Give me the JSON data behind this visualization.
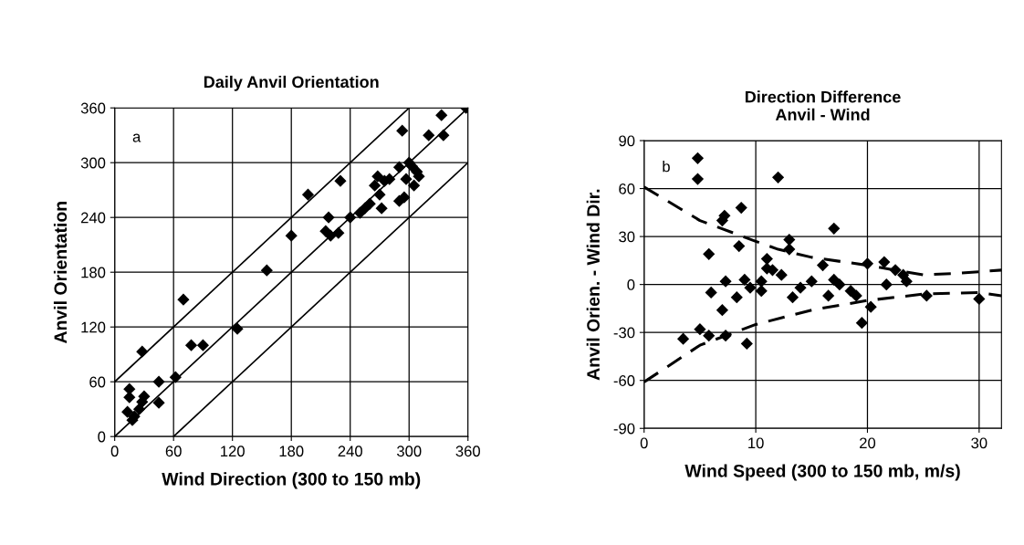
{
  "chart_data": [
    {
      "type": "scatter",
      "title": "Daily Anvil Orientation",
      "xlabel": "Wind Direction (300 to 150 mb)",
      "ylabel": "Anvil Orientation",
      "annotations": [
        "a"
      ],
      "xlim": [
        0,
        360
      ],
      "ylim": [
        0,
        360
      ],
      "xticks": [
        0,
        60,
        120,
        180,
        240,
        300,
        360
      ],
      "yticks": [
        0,
        60,
        120,
        180,
        240,
        300,
        360
      ],
      "grid": true,
      "marker": "diamond",
      "series": [
        {
          "color": "#000000",
          "x": [
            15,
            15,
            13,
            18,
            20,
            25,
            28,
            30,
            28,
            45,
            45,
            62,
            70,
            78,
            90,
            125,
            155,
            180,
            197,
            215,
            218,
            220,
            228,
            230,
            240,
            250,
            255,
            260,
            265,
            268,
            270,
            272,
            275,
            280,
            290,
            290,
            293,
            295,
            297,
            300,
            303,
            305,
            308,
            310,
            320,
            333,
            335,
            358
          ],
          "values": [
            52,
            43,
            27,
            18,
            22,
            30,
            93,
            44,
            38,
            37,
            60,
            65,
            150,
            100,
            100,
            118,
            182,
            220,
            265,
            225,
            240,
            220,
            223,
            280,
            240,
            245,
            250,
            255,
            275,
            285,
            265,
            250,
            280,
            282,
            295,
            258,
            335,
            262,
            282,
            300,
            296,
            275,
            290,
            285,
            330,
            352,
            330,
            360
          ]
        },
        {
          "type": "line",
          "color": "#000000",
          "marker": "none",
          "line_style": "solid",
          "x": [
            0,
            300
          ],
          "values": [
            60,
            360
          ]
        },
        {
          "type": "line",
          "color": "#000000",
          "marker": "none",
          "line_style": "solid",
          "x": [
            0,
            360
          ],
          "values": [
            0,
            360
          ]
        },
        {
          "type": "line",
          "color": "#000000",
          "marker": "none",
          "line_style": "solid",
          "x": [
            60,
            360
          ],
          "values": [
            0,
            300
          ]
        }
      ]
    },
    {
      "type": "scatter",
      "title": "Direction Difference\nAnvil - Wind",
      "xlabel": "Wind Speed (300 to 150 mb, m/s)",
      "ylabel": "Anvil Orien. - Wind Dir.",
      "annotations": [
        "b"
      ],
      "xlim": [
        0,
        32
      ],
      "ylim": [
        -90,
        90
      ],
      "xticks": [
        0,
        10,
        20,
        30
      ],
      "yticks": [
        -90,
        -60,
        -30,
        0,
        30,
        60,
        90
      ],
      "grid": true,
      "marker": "diamond",
      "series": [
        {
          "color": "#000000",
          "x": [
            3.5,
            4.8,
            4.8,
            5,
            5.8,
            5.8,
            6,
            7,
            7.2,
            7,
            7.3,
            7.3,
            8.3,
            8.5,
            8.7,
            9,
            9.2,
            9.5,
            10.5,
            10.5,
            11,
            11,
            12,
            11.5,
            12.3,
            13,
            13,
            13.3,
            14,
            15,
            16,
            16.5,
            17,
            17,
            17.5,
            18.5,
            19,
            19.5,
            20,
            20.3,
            21.5,
            21.7,
            22.5,
            23.2,
            23.5,
            25.3,
            30
          ],
          "values": [
            -34,
            66,
            79,
            -28,
            19,
            -32,
            -5,
            40,
            43,
            -16,
            2,
            -32,
            -8,
            24,
            48,
            3,
            -37,
            -2,
            -4,
            2,
            16,
            10,
            67,
            9,
            6,
            28,
            22,
            -8,
            -2,
            2,
            12,
            -7,
            35,
            3,
            0,
            -4,
            -7,
            -24,
            13,
            -14,
            14,
            0,
            9,
            6,
            2,
            -7,
            -9
          ]
        },
        {
          "type": "line",
          "color": "#000000",
          "marker": "none",
          "line_style": "dashed",
          "x": [
            0,
            5,
            10,
            12,
            15,
            20,
            25,
            28,
            32
          ],
          "values": [
            61,
            40,
            27,
            22,
            17,
            12,
            6,
            7,
            9
          ]
        },
        {
          "type": "line",
          "color": "#000000",
          "marker": "none",
          "line_style": "dashed",
          "x": [
            0,
            5,
            10,
            15,
            20,
            25,
            30,
            32
          ],
          "values": [
            -61,
            -38,
            -25,
            -16,
            -10,
            -6,
            -5,
            -7
          ]
        }
      ]
    }
  ]
}
